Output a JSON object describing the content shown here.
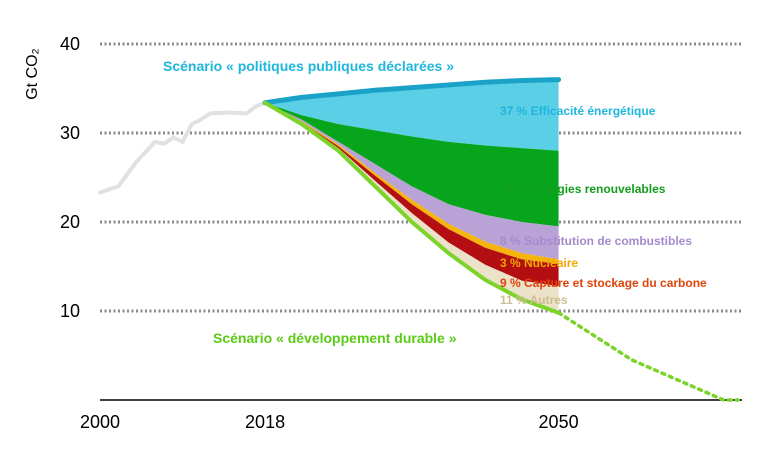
{
  "chart_data": {
    "type": "area",
    "title": "",
    "ylabel": "Gt CO₂",
    "xlabel": "",
    "x_ticks": [
      2000,
      2018,
      2050
    ],
    "y_ticks": [
      10,
      20,
      30,
      40
    ],
    "ylim": [
      0,
      40
    ],
    "xlim": [
      2000,
      2070
    ],
    "grid": "horizontal dotted",
    "history": {
      "x": [
        2000,
        2002,
        2004,
        2006,
        2007,
        2008,
        2009,
        2010,
        2011,
        2012,
        2014,
        2016,
        2017,
        2018
      ],
      "y": [
        23.3,
        24.0,
        26.8,
        29.0,
        28.8,
        29.5,
        29.0,
        31.0,
        31.5,
        32.2,
        32.3,
        32.2,
        33.0,
        33.4
      ]
    },
    "stated_policies": {
      "name": "Scénario « politiques publiques déclarées »",
      "x": [
        2018,
        2022,
        2026,
        2030,
        2034,
        2038,
        2042,
        2046,
        2050
      ],
      "y": [
        33.4,
        34.0,
        34.4,
        34.8,
        35.1,
        35.4,
        35.7,
        35.9,
        36.0
      ]
    },
    "sustainable_development": {
      "name": "Scénario « développement durable »",
      "x": [
        2018,
        2022,
        2026,
        2030,
        2034,
        2038,
        2042,
        2046,
        2050
      ],
      "y": [
        33.4,
        31.0,
        28.0,
        24.0,
        20.0,
        16.5,
        13.5,
        11.3,
        9.8
      ],
      "extension_x": [
        2050,
        2058,
        2068
      ],
      "extension_y": [
        9.8,
        4.5,
        0
      ]
    },
    "wedge_boundaries": {
      "x": [
        2018,
        2022,
        2026,
        2030,
        2034,
        2038,
        2042,
        2046,
        2050
      ],
      "efficiency_bottom": [
        33.4,
        32.0,
        31.0,
        30.3,
        29.6,
        29.0,
        28.6,
        28.3,
        28.0
      ],
      "renewables_bottom": [
        33.4,
        31.5,
        29.0,
        26.5,
        24.0,
        22.0,
        20.8,
        20.0,
        19.5
      ],
      "fuel_switch_bottom": [
        33.4,
        31.3,
        28.7,
        25.5,
        22.5,
        19.8,
        17.8,
        16.5,
        15.8
      ],
      "nuclear_bottom": [
        33.4,
        31.2,
        28.5,
        25.2,
        22.0,
        19.2,
        17.1,
        15.8,
        15.3
      ],
      "ccus_bottom": [
        33.4,
        31.1,
        28.3,
        24.6,
        21.0,
        17.7,
        15.2,
        13.4,
        12.8
      ]
    },
    "labels": {
      "stated_policies": "Scénario « politiques publiques déclarées »",
      "sustainable": "Scénario « développement durable »",
      "efficiency": "37 % Efficacité énergétique",
      "renewables": "32 % Énergies renouvelables",
      "fuel_switch": "8 % Substitution de combustibles",
      "nuclear": "3 % Nucléaire",
      "ccus": "9 % Capture et stockage du carbone",
      "other": "11 % Autres"
    },
    "colors": {
      "history": "#dfe2e0",
      "stated_policies_line": "#1aa2c8",
      "efficiency": "#5bcfe6",
      "renewables": "#06a51c",
      "fuel_switch": "#b9a2d6",
      "nuclear": "#f6b40e",
      "ccus": "#b30f12",
      "other": "#ebe2c9",
      "sustainable_line": "#7cd329",
      "grid": "#8a8a8a",
      "fuel_switch_text": "#a58bcd",
      "nuclear_text": "#efa700",
      "ccus_text": "#e0430b",
      "other_text": "#cdbd92",
      "efficiency_text": "#1fb6dd",
      "renewables_text": "#139e1c",
      "sustainable_text": "#5ccb16"
    }
  }
}
